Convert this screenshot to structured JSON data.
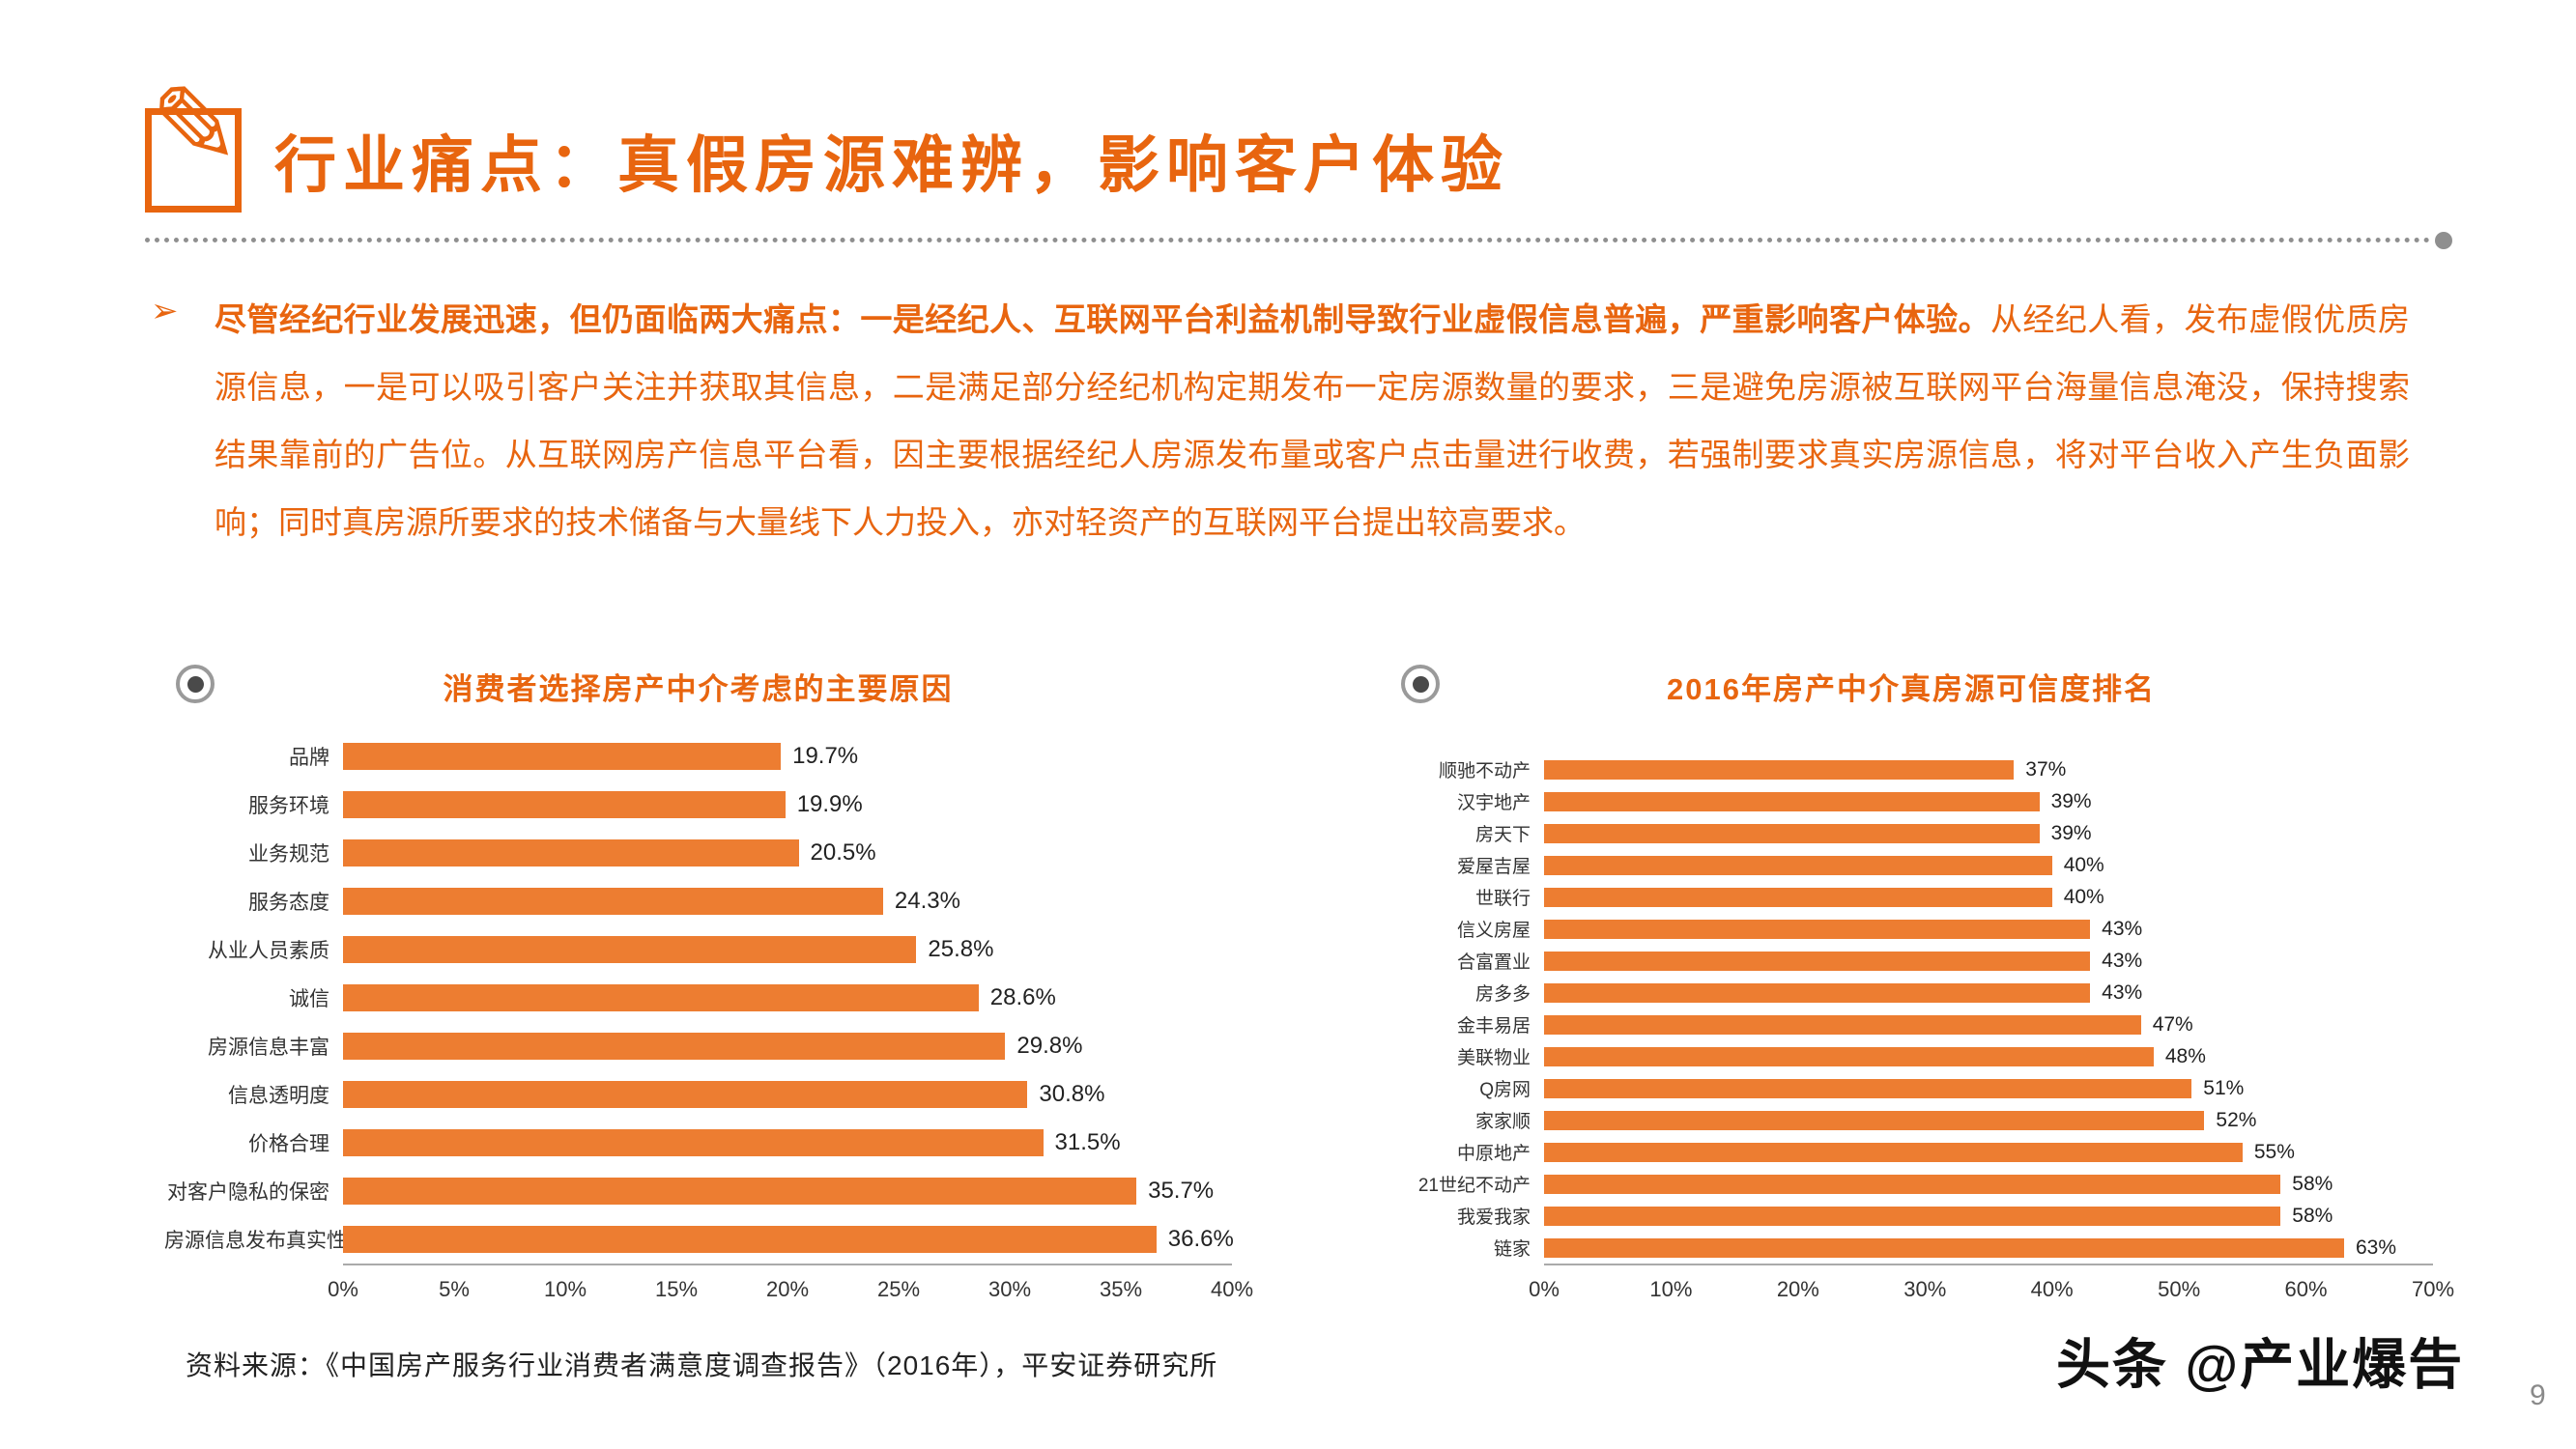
{
  "header": {
    "title": "行业痛点：真假房源难辨，影响客户体验"
  },
  "intro": {
    "bullet": "➢",
    "lead": "尽管经纪行业发展迅速，但仍面临两大痛点：一是经纪人、互联网平台利益机制导致行业虚假信息普遍，严重影响客户体验。",
    "body": "从经纪人看，发布虚假优质房源信息，一是可以吸引客户关注并获取其信息，二是满足部分经纪机构定期发布一定房源数量的要求，三是避免房源被互联网平台海量信息淹没，保持搜索结果靠前的广告位。从互联网房产信息平台看，因主要根据经纪人房源发布量或客户点击量进行收费，若强制要求真实房源信息，将对平台收入产生负面影响；同时真房源所要求的技术储备与大量线下人力投入，亦对轻资产的互联网平台提出较高要求。"
  },
  "colors": {
    "accent": "#E8650F",
    "bar": "#ED7D31",
    "axis_gray": "#AAAAAA",
    "divider_gray": "#8F8F8F"
  },
  "chart_data": [
    {
      "type": "bar",
      "orientation": "horizontal",
      "title": "消费者选择房产中介考虑的主要原因",
      "categories": [
        "品牌",
        "服务环境",
        "业务规范",
        "服务态度",
        "从业人员素质",
        "诚信",
        "房源信息丰富",
        "信息透明度",
        "价格合理",
        "对客户隐私的保密",
        "房源信息发布真实性"
      ],
      "values": [
        19.7,
        19.9,
        20.5,
        24.3,
        25.8,
        28.6,
        29.8,
        30.8,
        31.5,
        35.7,
        36.6
      ],
      "value_labels": [
        "19.7%",
        "19.9%",
        "20.5%",
        "24.3%",
        "25.8%",
        "28.6%",
        "29.8%",
        "30.8%",
        "31.5%",
        "35.7%",
        "36.6%"
      ],
      "xlim": [
        0,
        40
      ],
      "x_ticks": [
        "0%",
        "5%",
        "10%",
        "15%",
        "20%",
        "25%",
        "30%",
        "35%",
        "40%"
      ],
      "bar_color": "#ED7D31",
      "legend": "none",
      "grid": "off"
    },
    {
      "type": "bar",
      "orientation": "horizontal",
      "title": "2016年房产中介真房源可信度排名",
      "categories": [
        "顺驰不动产",
        "汉宇地产",
        "房天下",
        "爱屋吉屋",
        "世联行",
        "信义房屋",
        "合富置业",
        "房多多",
        "金丰易居",
        "美联物业",
        "Q房网",
        "家家顺",
        "中原地产",
        "21世纪不动产",
        "我爱我家",
        "链家"
      ],
      "values": [
        37,
        39,
        39,
        40,
        40,
        43,
        43,
        43,
        47,
        48,
        51,
        52,
        55,
        58,
        58,
        63
      ],
      "value_labels": [
        "37%",
        "39%",
        "39%",
        "40%",
        "40%",
        "43%",
        "43%",
        "43%",
        "47%",
        "48%",
        "51%",
        "52%",
        "55%",
        "58%",
        "58%",
        "63%"
      ],
      "xlim": [
        0,
        70
      ],
      "x_ticks": [
        "0%",
        "10%",
        "20%",
        "30%",
        "40%",
        "50%",
        "60%",
        "70%"
      ],
      "bar_color": "#ED7D31",
      "legend": "none",
      "grid": "off"
    }
  ],
  "footer": {
    "source": "资料来源：《中国房产服务行业消费者满意度调查报告》（2016年），平安证券研究所",
    "watermark": "头条 @产业爆告",
    "page_number": "9"
  }
}
